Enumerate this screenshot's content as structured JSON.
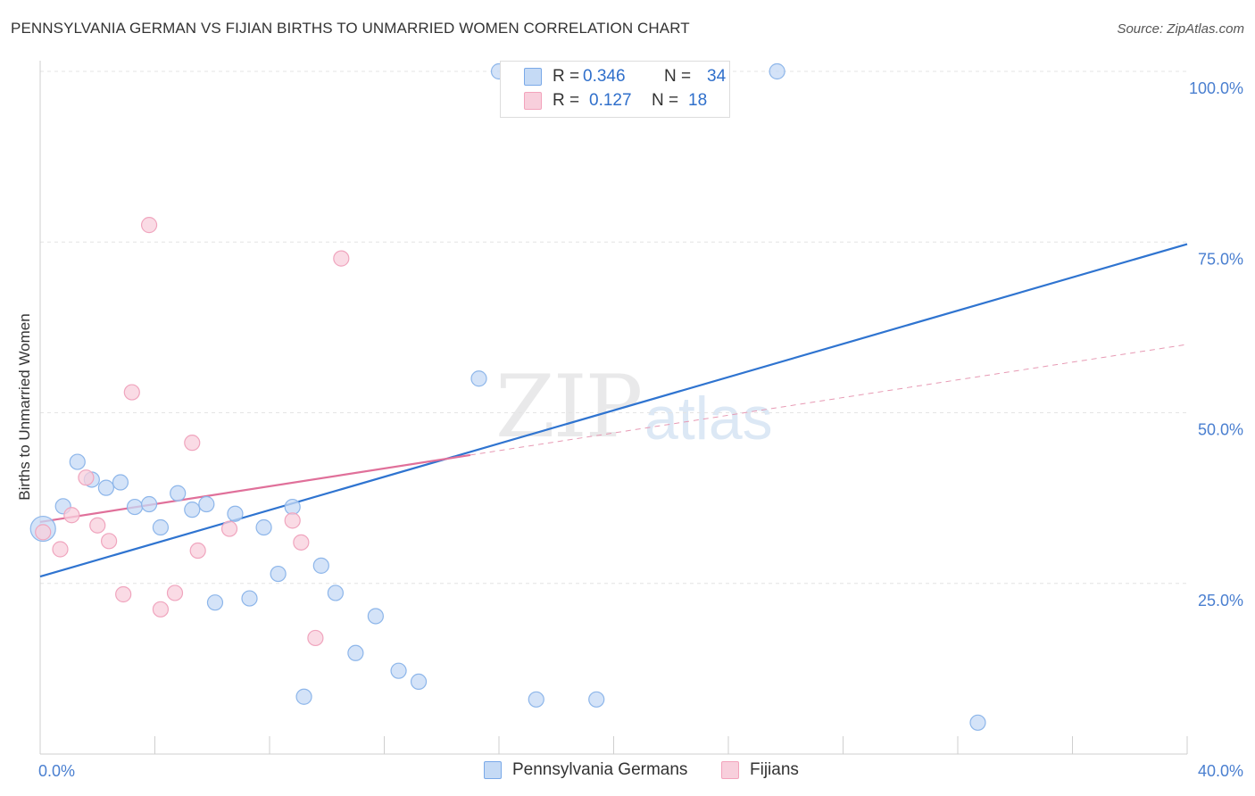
{
  "header": {
    "title": "PENNSYLVANIA GERMAN VS FIJIAN BIRTHS TO UNMARRIED WOMEN CORRELATION CHART",
    "source": "Source: ZipAtlas.com"
  },
  "watermark": {
    "zip": "ZIP",
    "atlas": "atlas"
  },
  "legend_top": {
    "rows": [
      {
        "r_label": "R =",
        "r_value": "0.346",
        "n_label": "N =",
        "n_value": "34",
        "color": "#7aa9e8"
      },
      {
        "r_label": "R =",
        "r_value": "0.127",
        "n_label": "N =",
        "n_value": "18",
        "color": "#f3a3bc"
      }
    ]
  },
  "legend_bottom": {
    "items": [
      {
        "label": "Pennsylvania Germans"
      },
      {
        "label": "Fijians"
      }
    ]
  },
  "chart_data": {
    "type": "scatter",
    "title": "PENNSYLVANIA GERMAN VS FIJIAN BIRTHS TO UNMARRIED WOMEN CORRELATION CHART",
    "xlabel": "",
    "ylabel": "Births to Unmarried Women",
    "xlim": [
      0,
      40
    ],
    "ylim": [
      0,
      102
    ],
    "x_tick_labels": [
      "0.0%",
      "40.0%"
    ],
    "y_tick_values": [
      25,
      50,
      75,
      100
    ],
    "y_tick_labels": [
      "25.0%",
      "50.0%",
      "75.0%",
      "100.0%"
    ],
    "grid": true,
    "legend_position": "top-center",
    "colors": {
      "blue": "#2f74d0",
      "blue_fill": "#c5daf5",
      "pink": "#e0709a",
      "pink_fill": "#f8cfdc",
      "tick_label": "#4a7fd0"
    },
    "series": [
      {
        "name": "Pennsylvania Germans",
        "r": 0.346,
        "n": 34,
        "points": [
          [
            0.1,
            33.0
          ],
          [
            0.8,
            36.3
          ],
          [
            1.3,
            42.8
          ],
          [
            1.8,
            40.2
          ],
          [
            2.3,
            39.0
          ],
          [
            2.8,
            39.8
          ],
          [
            3.3,
            36.2
          ],
          [
            3.8,
            36.6
          ],
          [
            4.2,
            33.2
          ],
          [
            4.8,
            38.2
          ],
          [
            5.3,
            35.8
          ],
          [
            5.8,
            36.6
          ],
          [
            6.1,
            22.2
          ],
          [
            6.8,
            35.2
          ],
          [
            7.3,
            22.8
          ],
          [
            7.8,
            33.2
          ],
          [
            8.3,
            26.4
          ],
          [
            8.8,
            36.2
          ],
          [
            9.2,
            8.4
          ],
          [
            9.8,
            27.6
          ],
          [
            10.3,
            23.6
          ],
          [
            11.0,
            14.8
          ],
          [
            11.7,
            20.2
          ],
          [
            12.5,
            12.2
          ],
          [
            13.2,
            10.6
          ],
          [
            15.3,
            55.0
          ],
          [
            16.0,
            100
          ],
          [
            17.2,
            100
          ],
          [
            17.3,
            8.0
          ],
          [
            18.2,
            100
          ],
          [
            19.4,
            8.0
          ],
          [
            22.2,
            100
          ],
          [
            25.7,
            100
          ],
          [
            32.7,
            4.6
          ]
        ],
        "trend": {
          "x": [
            0,
            40
          ],
          "y": [
            26.0,
            74.7
          ]
        }
      },
      {
        "name": "Fijians",
        "r": 0.127,
        "n": 18,
        "points": [
          [
            0.1,
            32.5
          ],
          [
            0.7,
            30.0
          ],
          [
            1.1,
            35.0
          ],
          [
            1.6,
            40.5
          ],
          [
            2.0,
            33.5
          ],
          [
            2.4,
            31.2
          ],
          [
            2.9,
            23.4
          ],
          [
            3.2,
            53.0
          ],
          [
            3.8,
            77.5
          ],
          [
            4.2,
            21.2
          ],
          [
            4.7,
            23.6
          ],
          [
            5.3,
            45.6
          ],
          [
            5.5,
            29.8
          ],
          [
            6.6,
            33.0
          ],
          [
            8.8,
            34.2
          ],
          [
            9.1,
            31.0
          ],
          [
            9.6,
            17.0
          ],
          [
            10.5,
            72.6
          ]
        ],
        "trend": {
          "x": [
            0,
            15.0
          ],
          "y": [
            34.0,
            43.8
          ]
        },
        "trend_extension": {
          "x": [
            15.0,
            40
          ],
          "y": [
            43.8,
            60.0
          ]
        }
      }
    ]
  }
}
